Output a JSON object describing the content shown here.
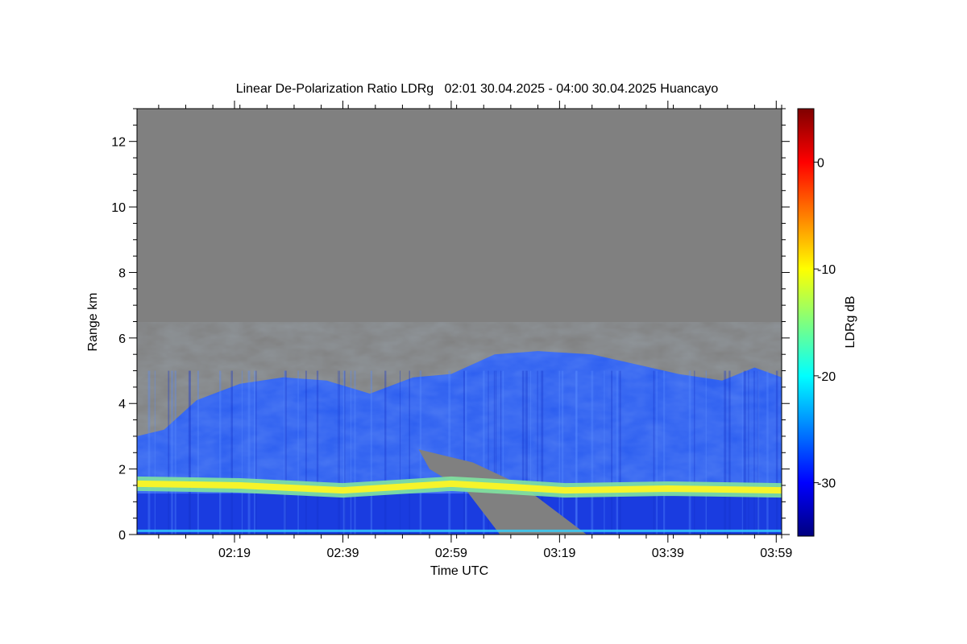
{
  "chart_data": {
    "type": "heatmap",
    "title": "Linear De-Polarization Ratio LDRg   02:01 30.04.2025 - 04:00 30.04.2025 Huancayo",
    "xlabel": "Time UTC",
    "ylabel": "Range km",
    "x_range": [
      "02:01",
      "04:00"
    ],
    "x_ticks": [
      "02:19",
      "02:39",
      "02:59",
      "03:19",
      "03:39",
      "03:59"
    ],
    "ylim": [
      0,
      13
    ],
    "y_ticks": [
      0,
      2,
      4,
      6,
      8,
      10,
      12
    ],
    "colorbar": {
      "label": "LDRg dB",
      "range": [
        -35,
        5
      ],
      "ticks": [
        0,
        -10,
        -20,
        -30
      ],
      "colormap": [
        "#00007f",
        "#0000ff",
        "#007fff",
        "#00ffff",
        "#7fff7f",
        "#ffff00",
        "#ff7f00",
        "#ff0000",
        "#7f0000"
      ]
    },
    "no_signal_color": "#808080",
    "layers": {
      "boundary_layer_top_km": [
        {
          "time": "02:01",
          "km": 3.0
        },
        {
          "time": "02:06",
          "km": 3.2
        },
        {
          "time": "02:12",
          "km": 4.1
        },
        {
          "time": "02:20",
          "km": 4.6
        },
        {
          "time": "02:28",
          "km": 4.8
        },
        {
          "time": "02:36",
          "km": 4.7
        },
        {
          "time": "02:44",
          "km": 4.3
        },
        {
          "time": "02:52",
          "km": 4.8
        },
        {
          "time": "02:59",
          "km": 4.9
        },
        {
          "time": "03:07",
          "km": 5.5
        },
        {
          "time": "03:15",
          "km": 5.6
        },
        {
          "time": "03:25",
          "km": 5.5
        },
        {
          "time": "03:33",
          "km": 5.2
        },
        {
          "time": "03:41",
          "km": 4.9
        },
        {
          "time": "03:49",
          "km": 4.7
        },
        {
          "time": "03:55",
          "km": 5.1
        },
        {
          "time": "04:00",
          "km": 4.8
        }
      ],
      "elevated_layer_km": [
        {
          "time": "02:01",
          "km": 1.55
        },
        {
          "time": "02:20",
          "km": 1.5
        },
        {
          "time": "02:39",
          "km": 1.35
        },
        {
          "time": "02:59",
          "km": 1.55
        },
        {
          "time": "03:10",
          "km": 1.45
        },
        {
          "time": "03:20",
          "km": 1.35
        },
        {
          "time": "03:39",
          "km": 1.4
        },
        {
          "time": "04:00",
          "km": 1.35
        }
      ],
      "elevated_layer_ldr_db": -12,
      "boundary_layer_ldr_db": -27,
      "lower_layer_ldr_db": -31
    }
  }
}
